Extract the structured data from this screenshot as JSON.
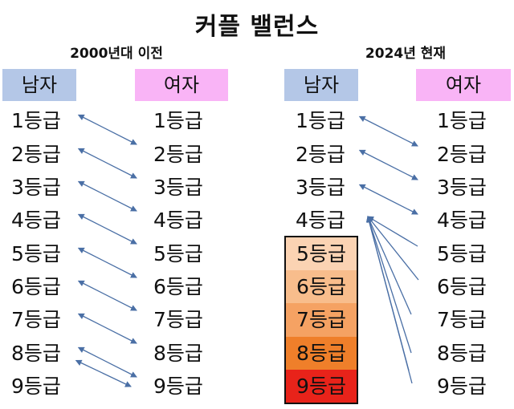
{
  "title": "커플 밸런스",
  "left": {
    "subtitle": "2000년대 이전",
    "male_header": "남자",
    "female_header": "여자",
    "male": [
      "1등급",
      "2등급",
      "3등급",
      "4등급",
      "5등급",
      "6등급",
      "7등급",
      "8등급",
      "9등급"
    ],
    "female": [
      "1등급",
      "2등급",
      "3등급",
      "4등급",
      "5등급",
      "6등급",
      "7등급",
      "8등급",
      "9등급"
    ]
  },
  "right": {
    "subtitle": "2024년 현재",
    "male_header": "남자",
    "female_header": "여자",
    "male_top": [
      "1등급",
      "2등급",
      "3등급",
      "4등급"
    ],
    "male_box": [
      "5등급",
      "6등급",
      "7등급",
      "8등급",
      "9등급"
    ],
    "female": [
      "1등급",
      "2등급",
      "3등급",
      "4등급",
      "5등급",
      "6등급",
      "7등급",
      "8등급",
      "9등급"
    ]
  },
  "colors": {
    "male_header": "#b4c7e7",
    "female_header": "#f9b4f6",
    "arrow": "#4a6fa5",
    "box_shades": [
      "#fbd3b3",
      "#f8bd8c",
      "#f5a263",
      "#ef7f2a",
      "#e8231a"
    ]
  }
}
